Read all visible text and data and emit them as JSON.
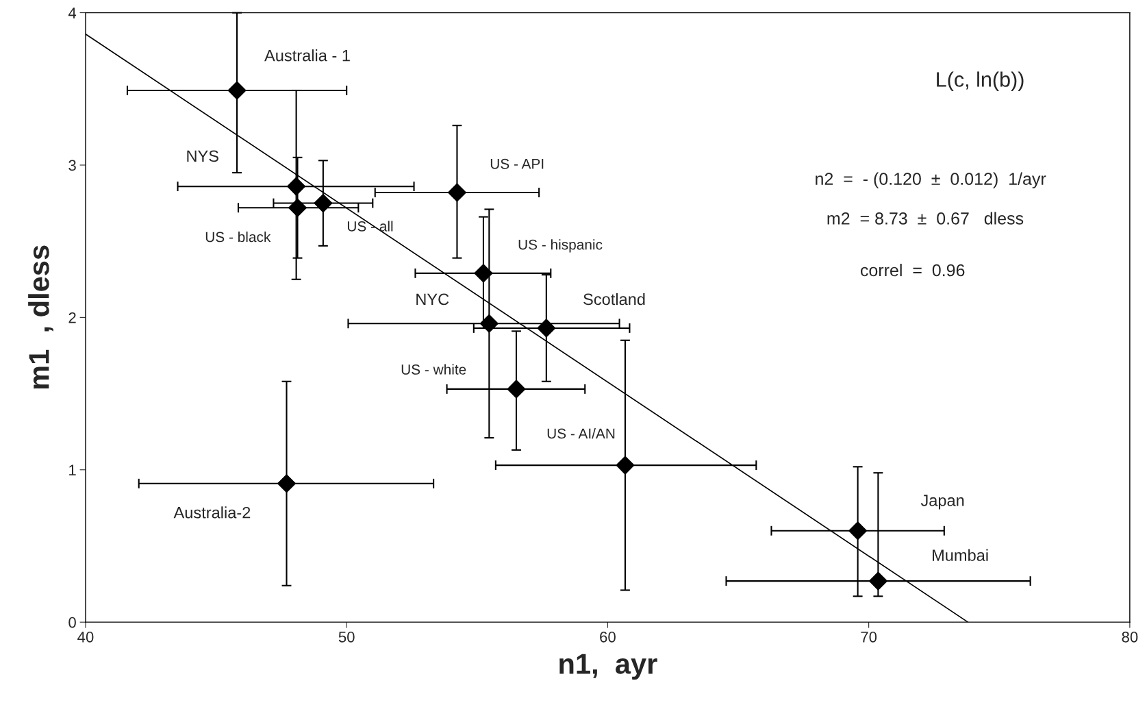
{
  "chart_data": {
    "type": "scatter",
    "xlabel": "n1,  ayr",
    "ylabel": "m1  , dless",
    "xlim": [
      40,
      80
    ],
    "ylim": [
      0,
      4
    ],
    "xticks": [
      40,
      50,
      60,
      70,
      80
    ],
    "yticks": [
      0,
      1,
      2,
      3,
      4
    ],
    "grid": false,
    "series": [
      {
        "color": "#000000",
        "marker": "diamond",
        "x": [
          45.8,
          48.07,
          48.12,
          49.1,
          54.23,
          55.24,
          55.46,
          57.65,
          56.5,
          60.67,
          47.7,
          69.58,
          70.36
        ],
        "values": [
          3.49,
          2.86,
          2.72,
          2.75,
          2.82,
          2.29,
          1.96,
          1.93,
          1.53,
          1.03,
          0.91,
          0.6,
          0.27
        ],
        "errors": [
          [
            2.95,
            4.0
          ],
          [
            2.25,
            3.49
          ],
          [
            2.39,
            3.05
          ],
          [
            2.47,
            3.03
          ],
          [
            2.39,
            3.26
          ],
          [
            1.93,
            2.66
          ],
          [
            1.21,
            2.71
          ],
          [
            1.58,
            2.28
          ],
          [
            1.13,
            1.91
          ],
          [
            0.21,
            1.85
          ],
          [
            0.24,
            1.58
          ],
          [
            0.17,
            1.02
          ],
          [
            0.17,
            0.98
          ]
        ],
        "xerrors": [
          [
            41.6,
            50.0
          ],
          [
            43.53,
            52.58
          ],
          [
            45.85,
            50.45
          ],
          [
            47.2,
            51.0
          ],
          [
            51.09,
            57.37
          ],
          [
            52.63,
            57.82
          ],
          [
            50.06,
            60.45
          ],
          [
            54.87,
            60.84
          ],
          [
            53.84,
            59.13
          ],
          [
            55.71,
            65.69
          ],
          [
            42.04,
            53.33
          ],
          [
            66.27,
            72.89
          ],
          [
            64.54,
            76.19
          ]
        ]
      },
      {
        "type": "line",
        "color": "#000000",
        "line_style": "solid",
        "x": [
          40,
          73.8
        ],
        "values": [
          3.86,
          0
        ]
      }
    ],
    "annotations": [
      "Australia - 1",
      "NYS",
      "US - black",
      "US - all",
      "US - API",
      "US - hispanic",
      "NYC",
      "Scotland",
      "US - white",
      "US - AI/AN",
      "Australia-2",
      "Japan",
      "Mumbai",
      "L(c, ln(b))",
      "n2  =  - (0.120  ±  0.012)  1/ayr",
      "m2  = 8.73  ±  0.67   dless",
      "correl  =  0.96"
    ]
  }
}
